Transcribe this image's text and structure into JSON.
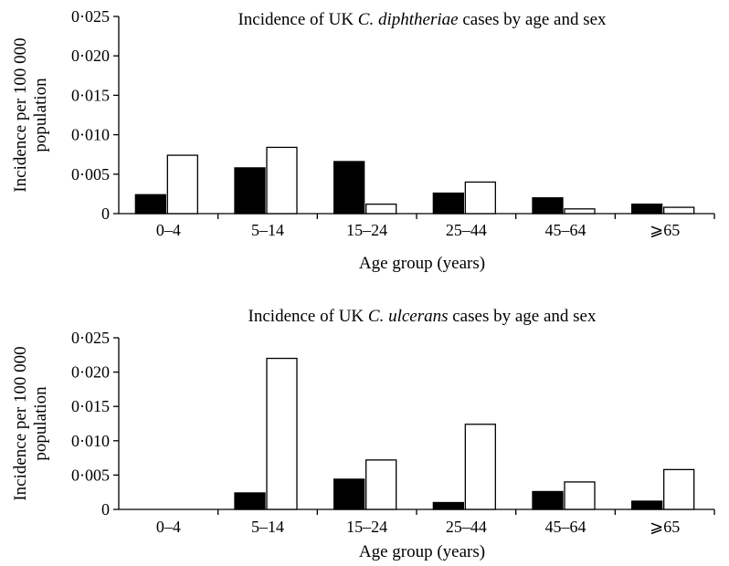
{
  "chart_data": [
    {
      "type": "bar",
      "title": "Incidence of UK C. diphtheriae cases by age and sex",
      "title_parts": {
        "prefix": "Incidence of UK ",
        "species": "C. diphtheriae",
        "suffix": " cases by age and sex"
      },
      "xlabel": "Age group (years)",
      "ylabel_lines": [
        "Incidence per 100 000",
        "population"
      ],
      "categories": [
        "0–4",
        "5–14",
        "15–24",
        "25–44",
        "45–64",
        "⩾65"
      ],
      "ylim": [
        0,
        0.025
      ],
      "yticks": [
        {
          "value": 0,
          "label": "0"
        },
        {
          "value": 0.005,
          "label": "0·005"
        },
        {
          "value": 0.01,
          "label": "0·010"
        },
        {
          "value": 0.015,
          "label": "0·015"
        },
        {
          "value": 0.02,
          "label": "0·020"
        },
        {
          "value": 0.025,
          "label": "0·025"
        }
      ],
      "grid": false,
      "series": [
        {
          "values": [
            0.0024,
            0.0058,
            0.0066,
            0.0026,
            0.002,
            0.0012
          ],
          "color": "#000000"
        },
        {
          "values": [
            0.0074,
            0.0084,
            0.0012,
            0.004,
            0.0006,
            0.0008
          ],
          "color": "#ffffff"
        }
      ]
    },
    {
      "type": "bar",
      "title": "Incidence of UK C. ulcerans cases by age and sex",
      "title_parts": {
        "prefix": "Incidence of UK ",
        "species": "C. ulcerans",
        "suffix": " cases by age and sex"
      },
      "xlabel": "Age group (years)",
      "ylabel_lines": [
        "Incidence per 100 000",
        "population"
      ],
      "categories": [
        "0–4",
        "5–14",
        "15–24",
        "25–44",
        "45–64",
        "⩾65"
      ],
      "ylim": [
        0,
        0.025
      ],
      "yticks": [
        {
          "value": 0,
          "label": "0"
        },
        {
          "value": 0.005,
          "label": "0·005"
        },
        {
          "value": 0.01,
          "label": "0·010"
        },
        {
          "value": 0.015,
          "label": "0·015"
        },
        {
          "value": 0.02,
          "label": "0·020"
        },
        {
          "value": 0.025,
          "label": "0·025"
        }
      ],
      "grid": false,
      "series": [
        {
          "values": [
            0,
            0.0024,
            0.0044,
            0.001,
            0.0026,
            0.0012
          ],
          "color": "#000000"
        },
        {
          "values": [
            0,
            0.022,
            0.0072,
            0.0124,
            0.004,
            0.0058
          ],
          "color": "#ffffff"
        }
      ]
    }
  ]
}
